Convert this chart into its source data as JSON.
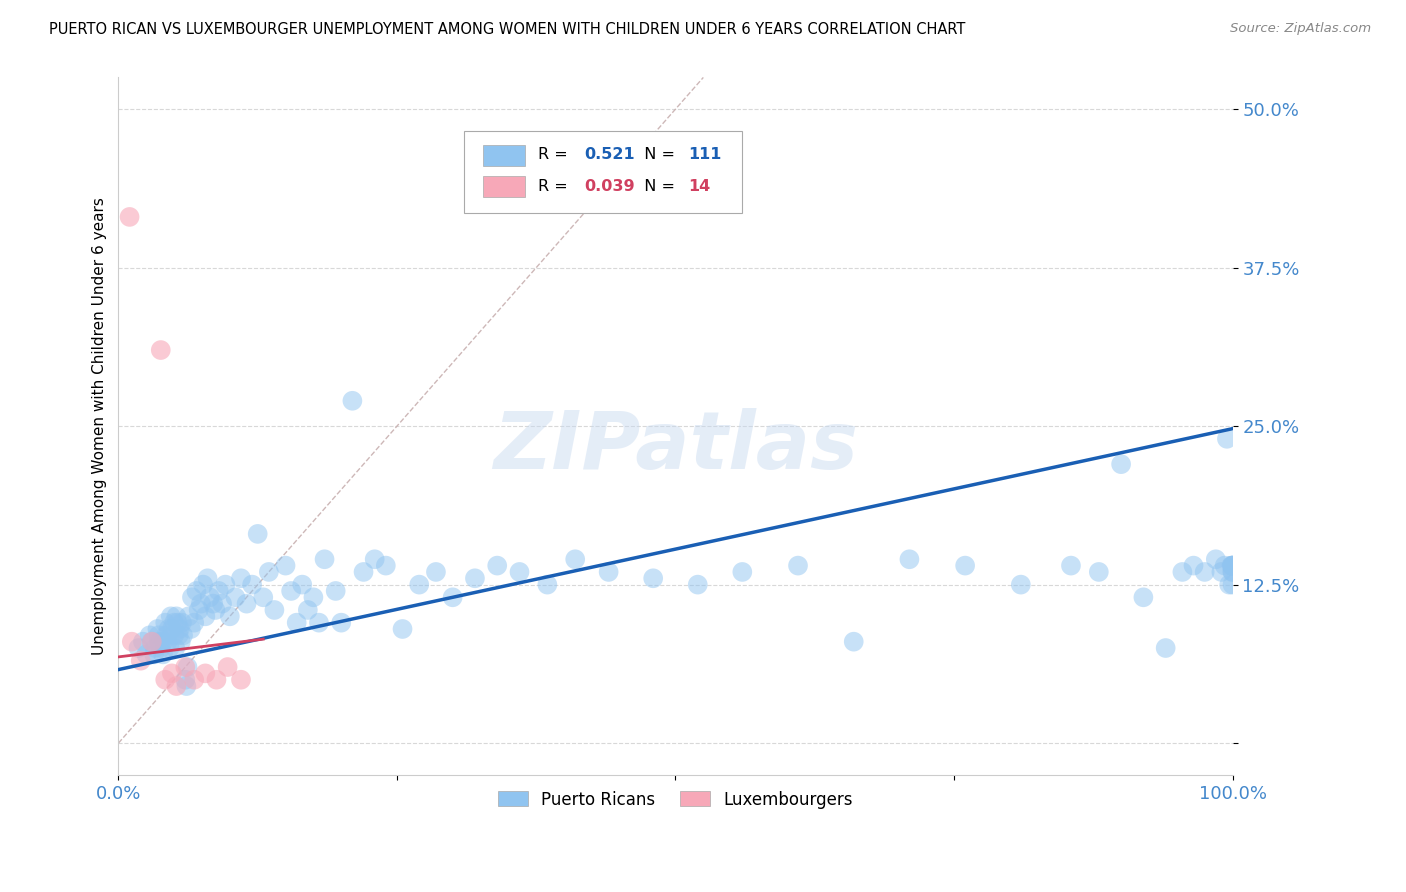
{
  "title": "PUERTO RICAN VS LUXEMBOURGER UNEMPLOYMENT AMONG WOMEN WITH CHILDREN UNDER 6 YEARS CORRELATION CHART",
  "source": "Source: ZipAtlas.com",
  "ylabel": "Unemployment Among Women with Children Under 6 years",
  "watermark": "ZIPatlas",
  "xlim": [
    0.0,
    1.0
  ],
  "ylim": [
    -0.025,
    0.525
  ],
  "yticks": [
    0.0,
    0.125,
    0.25,
    0.375,
    0.5
  ],
  "yticklabels": [
    "",
    "12.5%",
    "25.0%",
    "37.5%",
    "50.0%"
  ],
  "xticks": [
    0.0,
    0.25,
    0.5,
    0.75,
    1.0
  ],
  "xticklabels": [
    "0.0%",
    "",
    "",
    "",
    "100.0%"
  ],
  "color_blue": "#90c4f0",
  "color_pink": "#f7a8b8",
  "color_blue_line": "#1a5fb4",
  "color_pink_line": "#d04060",
  "color_diag": "#c8b0b0",
  "color_grid": "#d8d8d8",
  "color_ytick": "#4488cc",
  "color_xtick": "#4488cc",
  "pr_x": [
    0.018,
    0.022,
    0.025,
    0.028,
    0.03,
    0.032,
    0.033,
    0.035,
    0.036,
    0.037,
    0.038,
    0.04,
    0.04,
    0.042,
    0.043,
    0.044,
    0.045,
    0.046,
    0.047,
    0.048,
    0.05,
    0.05,
    0.051,
    0.052,
    0.053,
    0.054,
    0.055,
    0.056,
    0.057,
    0.058,
    0.06,
    0.061,
    0.062,
    0.063,
    0.065,
    0.066,
    0.068,
    0.07,
    0.072,
    0.074,
    0.076,
    0.078,
    0.08,
    0.082,
    0.085,
    0.087,
    0.09,
    0.093,
    0.096,
    0.1,
    0.105,
    0.11,
    0.115,
    0.12,
    0.125,
    0.13,
    0.135,
    0.14,
    0.15,
    0.155,
    0.16,
    0.165,
    0.17,
    0.175,
    0.18,
    0.185,
    0.195,
    0.2,
    0.21,
    0.22,
    0.23,
    0.24,
    0.255,
    0.27,
    0.285,
    0.3,
    0.32,
    0.34,
    0.36,
    0.385,
    0.41,
    0.44,
    0.48,
    0.52,
    0.56,
    0.61,
    0.66,
    0.71,
    0.76,
    0.81,
    0.855,
    0.88,
    0.9,
    0.92,
    0.94,
    0.955,
    0.965,
    0.975,
    0.985,
    0.99,
    0.993,
    0.995,
    0.997,
    0.999,
    1.0,
    1.0,
    1.0,
    1.0,
    1.0,
    1.0,
    1.0
  ],
  "pr_y": [
    0.075,
    0.08,
    0.07,
    0.085,
    0.08,
    0.07,
    0.075,
    0.09,
    0.085,
    0.08,
    0.075,
    0.07,
    0.08,
    0.095,
    0.085,
    0.08,
    0.09,
    0.075,
    0.1,
    0.09,
    0.085,
    0.095,
    0.075,
    0.1,
    0.095,
    0.085,
    0.09,
    0.08,
    0.095,
    0.085,
    0.05,
    0.045,
    0.06,
    0.1,
    0.09,
    0.115,
    0.095,
    0.12,
    0.105,
    0.11,
    0.125,
    0.1,
    0.13,
    0.115,
    0.11,
    0.105,
    0.12,
    0.11,
    0.125,
    0.1,
    0.115,
    0.13,
    0.11,
    0.125,
    0.165,
    0.115,
    0.135,
    0.105,
    0.14,
    0.12,
    0.095,
    0.125,
    0.105,
    0.115,
    0.095,
    0.145,
    0.12,
    0.095,
    0.27,
    0.135,
    0.145,
    0.14,
    0.09,
    0.125,
    0.135,
    0.115,
    0.13,
    0.14,
    0.135,
    0.125,
    0.145,
    0.135,
    0.13,
    0.125,
    0.135,
    0.14,
    0.08,
    0.145,
    0.14,
    0.125,
    0.14,
    0.135,
    0.22,
    0.115,
    0.075,
    0.135,
    0.14,
    0.135,
    0.145,
    0.135,
    0.14,
    0.24,
    0.125,
    0.14,
    0.14,
    0.135,
    0.14,
    0.125,
    0.135,
    0.14,
    0.14
  ],
  "lux_x": [
    0.01,
    0.012,
    0.02,
    0.03,
    0.038,
    0.042,
    0.048,
    0.052,
    0.06,
    0.068,
    0.078,
    0.088,
    0.098,
    0.11
  ],
  "lux_y": [
    0.415,
    0.08,
    0.065,
    0.08,
    0.31,
    0.05,
    0.055,
    0.045,
    0.06,
    0.05,
    0.055,
    0.05,
    0.06,
    0.05
  ],
  "pr_trend_x": [
    0.0,
    1.0
  ],
  "pr_trend_y": [
    0.058,
    0.248
  ],
  "lux_trend_x": [
    0.0,
    0.13
  ],
  "lux_trend_y": [
    0.068,
    0.082
  ],
  "figsize": [
    14.06,
    8.92
  ],
  "dpi": 100
}
